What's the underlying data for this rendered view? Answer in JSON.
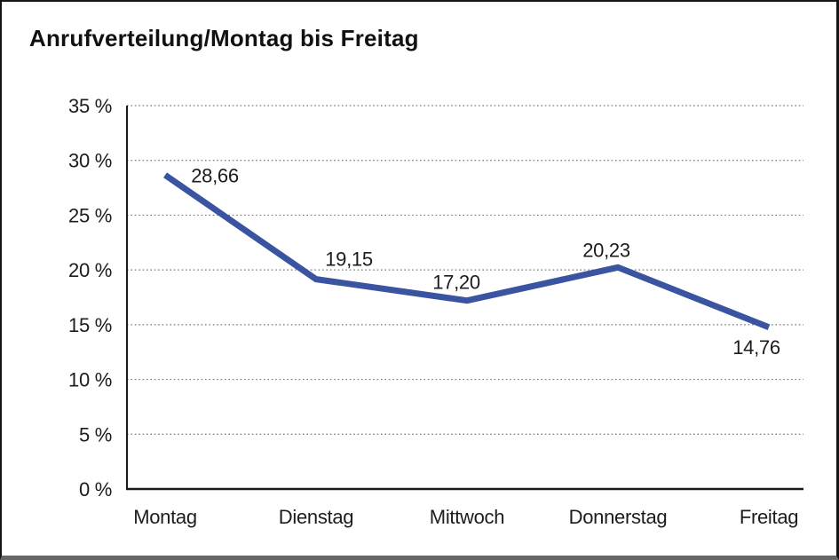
{
  "title": "Anrufverteilung/Montag bis Freitag",
  "chart_data": {
    "type": "line",
    "title": "Anrufverteilung/Montag bis Freitag",
    "categories": [
      "Montag",
      "Dienstag",
      "Mittwoch",
      "Donnerstag",
      "Freitag"
    ],
    "values": [
      28.66,
      19.15,
      17.2,
      20.23,
      14.76
    ],
    "value_labels": [
      "28,66",
      "19,15",
      "17,20",
      "20,23",
      "14,76"
    ],
    "ytick_labels": [
      "0 %",
      "5 %",
      "10 %",
      "15 %",
      "20 %",
      "25 %",
      "30 %",
      "35 %"
    ],
    "ytick_values": [
      0,
      5,
      10,
      15,
      20,
      25,
      30,
      35
    ],
    "ylim": [
      0,
      35
    ],
    "xlabel": "",
    "ylabel": "",
    "legend": "none",
    "markers": "none",
    "grid": "horizontal-dotted",
    "line_color": "#3A54A1",
    "grid_color": "#777777",
    "axis_color": "#1a1a1a",
    "text_color": "#1c1c1c"
  }
}
